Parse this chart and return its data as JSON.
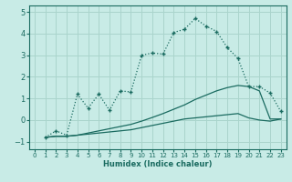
{
  "title": "",
  "xlabel": "Humidex (Indice chaleur)",
  "background_color": "#c8ebe6",
  "grid_color": "#aad4cc",
  "line_color": "#1a6b60",
  "xlim": [
    -0.5,
    23.5
  ],
  "ylim": [
    -1.35,
    5.3
  ],
  "yticks": [
    -1,
    0,
    1,
    2,
    3,
    4,
    5
  ],
  "xticks": [
    0,
    1,
    2,
    3,
    4,
    5,
    6,
    7,
    8,
    9,
    10,
    11,
    12,
    13,
    14,
    15,
    16,
    17,
    18,
    19,
    20,
    21,
    22,
    23
  ],
  "line1_x": [
    1,
    2,
    3,
    4,
    5,
    6,
    7,
    8,
    9,
    10,
    11,
    12,
    13,
    14,
    15,
    16,
    17,
    18,
    19,
    20,
    21,
    22,
    23
  ],
  "line1_y": [
    -0.8,
    -0.75,
    -0.75,
    -0.7,
    -0.65,
    -0.6,
    -0.55,
    -0.5,
    -0.45,
    -0.35,
    -0.25,
    -0.15,
    -0.05,
    0.05,
    0.1,
    0.15,
    0.2,
    0.25,
    0.3,
    0.1,
    0.0,
    -0.05,
    0.05
  ],
  "line2_x": [
    1,
    2,
    3,
    4,
    5,
    6,
    7,
    8,
    9,
    10,
    11,
    12,
    13,
    14,
    15,
    16,
    17,
    18,
    19,
    20,
    21,
    22,
    23
  ],
  "line2_y": [
    -0.8,
    -0.75,
    -0.75,
    -0.7,
    -0.6,
    -0.5,
    -0.4,
    -0.3,
    -0.2,
    -0.05,
    0.12,
    0.3,
    0.5,
    0.7,
    0.95,
    1.15,
    1.35,
    1.5,
    1.6,
    1.55,
    1.35,
    0.05,
    0.05
  ],
  "line3_x": [
    1,
    2,
    3,
    4,
    5,
    6,
    7,
    8,
    9,
    10,
    11,
    12,
    13,
    14,
    15,
    16,
    17,
    18,
    19,
    20,
    21,
    22,
    23
  ],
  "line3_y": [
    -0.8,
    -0.5,
    -0.7,
    1.2,
    0.55,
    1.2,
    0.45,
    1.35,
    1.3,
    3.0,
    3.1,
    3.05,
    4.05,
    4.2,
    4.7,
    4.35,
    4.1,
    3.35,
    2.85,
    1.55,
    1.55,
    1.25,
    0.4
  ]
}
